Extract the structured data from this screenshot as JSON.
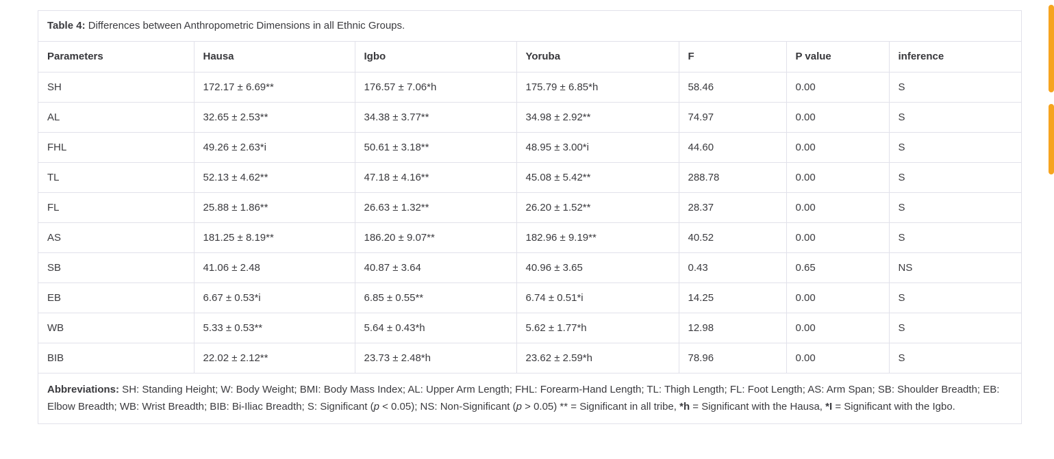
{
  "table": {
    "title_label": "Table 4:",
    "title_text": " Differences between Anthropometric Dimensions in all Ethnic Groups.",
    "columns": [
      "Parameters",
      "Hausa",
      "Igbo",
      "Yoruba",
      "F",
      "P value",
      "inference"
    ],
    "rows": [
      [
        "SH",
        "172.17 ± 6.69**",
        "176.57 ± 7.06*h",
        "175.79 ± 6.85*h",
        "58.46",
        "0.00",
        "S"
      ],
      [
        "AL",
        "32.65 ± 2.53**",
        "34.38 ± 3.77**",
        "34.98 ± 2.92**",
        "74.97",
        "0.00",
        "S"
      ],
      [
        "FHL",
        "49.26 ± 2.63*i",
        "50.61 ± 3.18**",
        "48.95 ± 3.00*i",
        "44.60",
        "0.00",
        "S"
      ],
      [
        "TL",
        "52.13 ± 4.62**",
        "47.18 ± 4.16**",
        "45.08 ± 5.42**",
        "288.78",
        "0.00",
        "S"
      ],
      [
        "FL",
        "25.88 ± 1.86**",
        "26.63 ± 1.32**",
        "26.20 ± 1.52**",
        "28.37",
        "0.00",
        "S"
      ],
      [
        "AS",
        "181.25 ± 8.19**",
        "186.20 ± 9.07**",
        "182.96 ± 9.19**",
        "40.52",
        "0.00",
        "S"
      ],
      [
        "SB",
        "41.06 ± 2.48",
        "40.87 ± 3.64",
        "40.96 ± 3.65",
        "0.43",
        "0.65",
        "NS"
      ],
      [
        "EB",
        "6.67 ± 0.53*i",
        "6.85 ± 0.55**",
        "6.74 ± 0.51*i",
        "14.25",
        "0.00",
        "S"
      ],
      [
        "WB",
        "5.33 ± 0.53**",
        "5.64 ± 0.43*h",
        "5.62 ± 1.77*h",
        "12.98",
        "0.00",
        "S"
      ],
      [
        "BIB",
        "22.02 ± 2.12**",
        "23.73 ± 2.48*h",
        "23.62 ± 2.59*h",
        "78.96",
        "0.00",
        "S"
      ]
    ],
    "footnote_segments": [
      {
        "text": "Abbreviations:",
        "bold": true
      },
      {
        "text": " SH: Standing Height; W: Body Weight; BMI: Body Mass Index; AL: Upper Arm Length; FHL: Forearm-Hand Length; TL: Thigh Length; FL: Foot Length; AS: Arm Span; SB: Shoulder Breadth; EB: Elbow Breadth; WB: Wrist Breadth; BIB: Bi-Iliac Breadth; S: Significant ("
      },
      {
        "text": "p",
        "italic": true
      },
      {
        "text": " < 0.05); NS: Non-Significant ("
      },
      {
        "text": "p",
        "italic": true
      },
      {
        "text": " > 0.05) ** = Significant in all tribe, "
      },
      {
        "text": "*h",
        "bold": true
      },
      {
        "text": " = Significant with the Hausa, "
      },
      {
        "text": "*I",
        "bold": true
      },
      {
        "text": " = Significant with the Igbo."
      }
    ]
  },
  "scroll_indicator": {
    "color": "#F6A41F"
  },
  "colors": {
    "border": "#e1e1ea",
    "text": "#3a3a3e",
    "background": "#ffffff"
  }
}
